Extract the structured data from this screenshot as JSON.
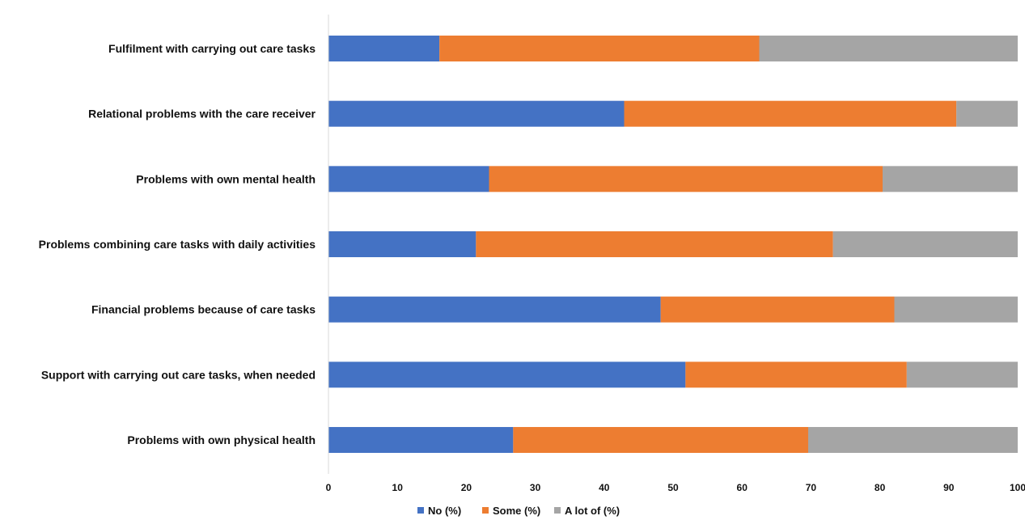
{
  "chart_data": {
    "type": "bar",
    "orientation": "horizontal",
    "stacked": true,
    "categories": [
      "Fulfilment with carrying out care tasks",
      "Relational problems with the care receiver",
      "Problems with own mental health",
      "Problems combining care tasks with daily activities",
      "Financial problems because of care tasks",
      "Support with carrying out care tasks, when needed",
      "Problems with own physical health"
    ],
    "series": [
      {
        "name": "No (%)",
        "color": "#4472C4",
        "values": [
          16.1,
          42.9,
          23.3,
          21.4,
          48.2,
          51.8,
          26.8
        ]
      },
      {
        "name": "Some (%)",
        "color": "#ED7D31",
        "values": [
          46.4,
          48.2,
          57.1,
          51.8,
          33.9,
          32.1,
          42.8
        ]
      },
      {
        "name": "A lot of (%)",
        "color": "#A5A5A5",
        "values": [
          37.5,
          8.9,
          19.6,
          26.8,
          17.9,
          16.1,
          30.4
        ]
      }
    ],
    "xlim": [
      0,
      100
    ],
    "xticks": [
      "0",
      "10",
      "20",
      "30",
      "40",
      "50",
      "60",
      "70",
      "80",
      "90",
      "100"
    ],
    "legend_position": "bottom",
    "grid": false,
    "title": "",
    "xlabel": "",
    "ylabel": ""
  }
}
